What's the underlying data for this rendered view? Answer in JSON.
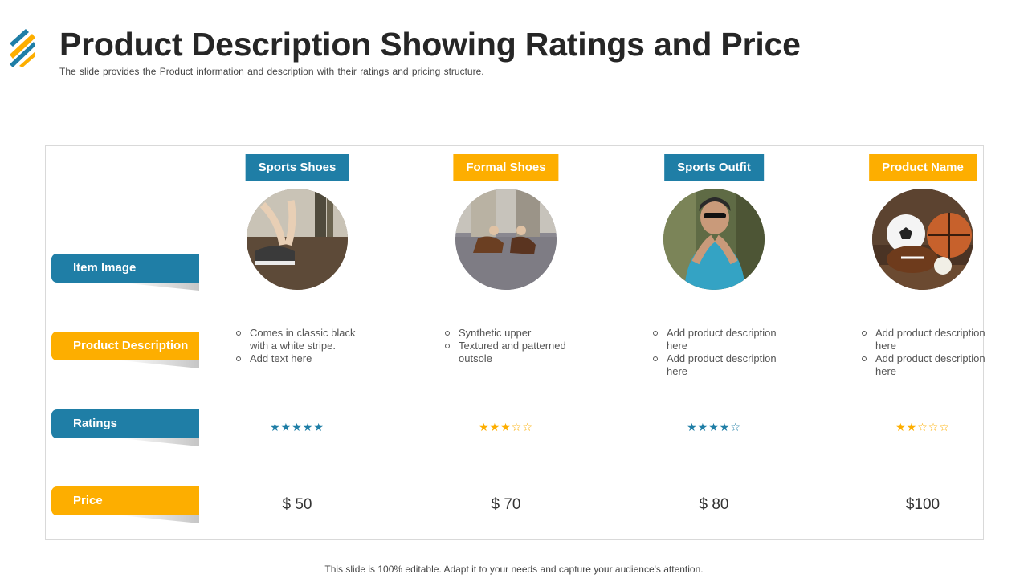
{
  "header": {
    "title": "Product Description Showing Ratings and Price",
    "subtitle": "The slide provides  the Product information  and description with their ratings and pricing structure."
  },
  "colors": {
    "blue": "#1f7ea6",
    "orange": "#fdae00",
    "blue_star": "#1f7ea6",
    "orange_star": "#fdae00"
  },
  "rows": [
    {
      "label": "Item Image",
      "color": "blue"
    },
    {
      "label": "Product Description",
      "color": "orange"
    },
    {
      "label": "Ratings",
      "color": "blue"
    },
    {
      "label": "Price",
      "color": "orange"
    }
  ],
  "products": [
    {
      "name": "Sports Shoes",
      "color": "blue",
      "image": "sports-shoes-photo",
      "description": [
        "Comes in classic black with a white stripe.",
        "Add text here"
      ],
      "rating": 5,
      "rating_max": 5,
      "price": "$ 50"
    },
    {
      "name": "Formal Shoes",
      "color": "orange",
      "image": "formal-shoes-photo",
      "description": [
        "Synthetic upper",
        "Textured  and patterned outsole"
      ],
      "rating": 3,
      "rating_max": 5,
      "price": "$ 70"
    },
    {
      "name": "Sports Outfit",
      "color": "blue",
      "image": "cyclist-photo",
      "description": [
        "Add product description here",
        "Add product description here"
      ],
      "rating": 4,
      "rating_max": 5,
      "price": "$ 80"
    },
    {
      "name": "Product Name",
      "color": "orange",
      "image": "sports-balls-photo",
      "description": [
        "Add product description here",
        "Add product description here"
      ],
      "rating": 2,
      "rating_max": 5,
      "price": "$100"
    }
  ],
  "footer": {
    "text": "This slide is 100% editable. Adapt it to your needs and capture your audience's attention."
  }
}
